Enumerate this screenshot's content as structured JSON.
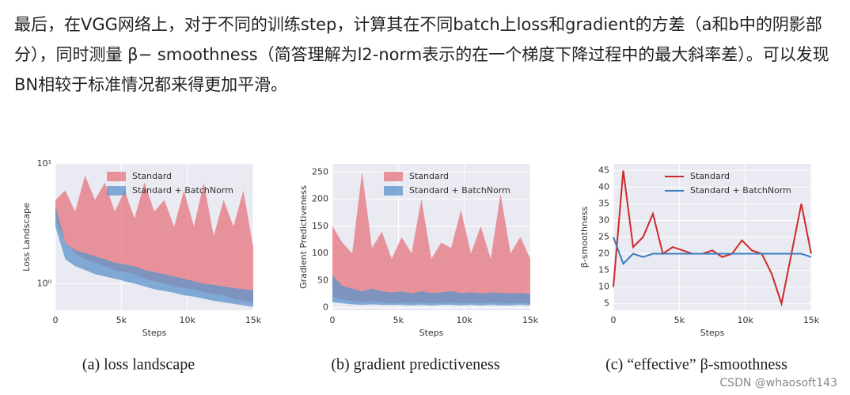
{
  "text": "最后，在VGG网络上，对于不同的训练step，计算其在不同batch上loss和gradient的方差（a和b中的阴影部分），同时测量 β− smoothness（简答理解为l2-norm表示的在一个梯度下降过程中的最大斜率差）。可以发现BN相较于标准情况都来得更加平滑。",
  "watermark": "CSDN @whaosoft143",
  "chart_data": [
    {
      "type": "band",
      "caption": "(a) loss landscape",
      "x_label": "Steps",
      "y_label": "Loss Landscape",
      "log_scale": true,
      "legend": "upper right",
      "x": [
        0,
        750,
        1500,
        2250,
        3000,
        3750,
        4500,
        5250,
        6000,
        6750,
        7500,
        8250,
        9000,
        9750,
        10500,
        11250,
        12000,
        12750,
        13500,
        14250,
        15000
      ],
      "xlim": [
        0,
        15000
      ],
      "xticks": [
        {
          "value": 0,
          "label": "0"
        },
        {
          "value": 5000,
          "label": "5k"
        },
        {
          "value": 10000,
          "label": "10k"
        },
        {
          "value": 15000,
          "label": "15k"
        }
      ],
      "ylim": [
        0.6,
        10
      ],
      "yticks": [
        {
          "value": 1,
          "label": "10⁰"
        },
        {
          "value": 10,
          "label": "10¹"
        }
      ],
      "series": [
        {
          "name": "Standard",
          "color": "#e5747e",
          "lower": [
            3.5,
            2.2,
            1.8,
            1.6,
            1.5,
            1.4,
            1.3,
            1.25,
            1.2,
            1.1,
            1.05,
            1.0,
            0.95,
            0.92,
            0.9,
            0.85,
            0.82,
            0.8,
            0.75,
            0.72,
            0.7
          ],
          "upper": [
            5,
            6,
            4,
            8,
            5,
            7,
            4,
            6,
            3.5,
            7,
            4,
            5,
            3,
            6,
            3,
            7,
            2.5,
            5,
            3,
            6,
            2
          ]
        },
        {
          "name": "Standard + BatchNorm",
          "color": "#5b93c9",
          "lower": [
            3,
            1.6,
            1.4,
            1.3,
            1.2,
            1.15,
            1.1,
            1.05,
            1.0,
            0.95,
            0.9,
            0.87,
            0.84,
            0.8,
            0.78,
            0.75,
            0.72,
            0.7,
            0.68,
            0.66,
            0.64
          ],
          "upper": [
            4.5,
            2.2,
            1.9,
            1.8,
            1.7,
            1.6,
            1.5,
            1.45,
            1.4,
            1.3,
            1.25,
            1.2,
            1.15,
            1.1,
            1.05,
            1.0,
            0.98,
            0.95,
            0.92,
            0.9,
            0.88
          ]
        }
      ]
    },
    {
      "type": "band",
      "caption": "(b) gradient predictiveness",
      "x_label": "Steps",
      "y_label": "Gradient Predictiveness",
      "log_scale": false,
      "legend": "upper right",
      "x": [
        0,
        750,
        1500,
        2250,
        3000,
        3750,
        4500,
        5250,
        6000,
        6750,
        7500,
        8250,
        9000,
        9750,
        10500,
        11250,
        12000,
        12750,
        13500,
        14250,
        15000
      ],
      "xlim": [
        0,
        15000
      ],
      "xticks": [
        {
          "value": 0,
          "label": "0"
        },
        {
          "value": 5000,
          "label": "5k"
        },
        {
          "value": 10000,
          "label": "10k"
        },
        {
          "value": 15000,
          "label": "15k"
        }
      ],
      "ylim": [
        -5,
        265
      ],
      "yticks": [
        0,
        50,
        100,
        150,
        200,
        250
      ],
      "series": [
        {
          "name": "Standard",
          "color": "#e5747e",
          "lower": [
            20,
            15,
            12,
            10,
            12,
            10,
            8,
            10,
            9,
            10,
            8,
            9,
            10,
            8,
            9,
            8,
            10,
            9,
            8,
            9,
            8
          ],
          "upper": [
            150,
            120,
            100,
            250,
            110,
            140,
            90,
            130,
            100,
            200,
            90,
            120,
            110,
            180,
            100,
            150,
            90,
            210,
            100,
            130,
            90
          ]
        },
        {
          "name": "Standard + BatchNorm",
          "color": "#5b93c9",
          "lower": [
            10,
            8,
            6,
            5,
            6,
            5,
            5,
            5,
            4,
            5,
            4,
            5,
            5,
            4,
            5,
            4,
            5,
            4,
            4,
            5,
            4
          ],
          "upper": [
            60,
            40,
            35,
            30,
            35,
            30,
            28,
            30,
            26,
            30,
            27,
            28,
            30,
            27,
            28,
            26,
            28,
            27,
            26,
            27,
            25
          ]
        }
      ]
    },
    {
      "type": "line",
      "caption": "(c) “effective” β-smoothness",
      "x_label": "Steps",
      "y_label": "β-smoothness",
      "log_scale": false,
      "legend": "upper right",
      "x": [
        0,
        750,
        1500,
        2250,
        3000,
        3750,
        4500,
        5250,
        6000,
        6750,
        7500,
        8250,
        9000,
        9750,
        10500,
        11250,
        12000,
        12750,
        13500,
        14250,
        15000
      ],
      "xlim": [
        0,
        15000
      ],
      "xticks": [
        {
          "value": 0,
          "label": "0"
        },
        {
          "value": 5000,
          "label": "5k"
        },
        {
          "value": 10000,
          "label": "10k"
        },
        {
          "value": 15000,
          "label": "15k"
        }
      ],
      "ylim": [
        3,
        47
      ],
      "yticks": [
        5,
        10,
        15,
        20,
        25,
        30,
        35,
        40,
        45
      ],
      "series": [
        {
          "name": "Standard",
          "color": "#cc2a2a",
          "values": [
            10,
            45,
            22,
            25,
            32,
            20,
            22,
            21,
            20,
            20,
            21,
            19,
            20,
            24,
            21,
            20,
            14,
            5,
            20,
            35,
            20
          ]
        },
        {
          "name": "Standard + BatchNorm",
          "color": "#3a7ebf",
          "values": [
            25,
            17,
            20,
            19,
            20,
            20,
            20,
            20,
            20,
            20,
            20,
            20,
            20,
            20,
            20,
            20,
            20,
            20,
            20,
            20,
            19
          ]
        }
      ]
    }
  ]
}
